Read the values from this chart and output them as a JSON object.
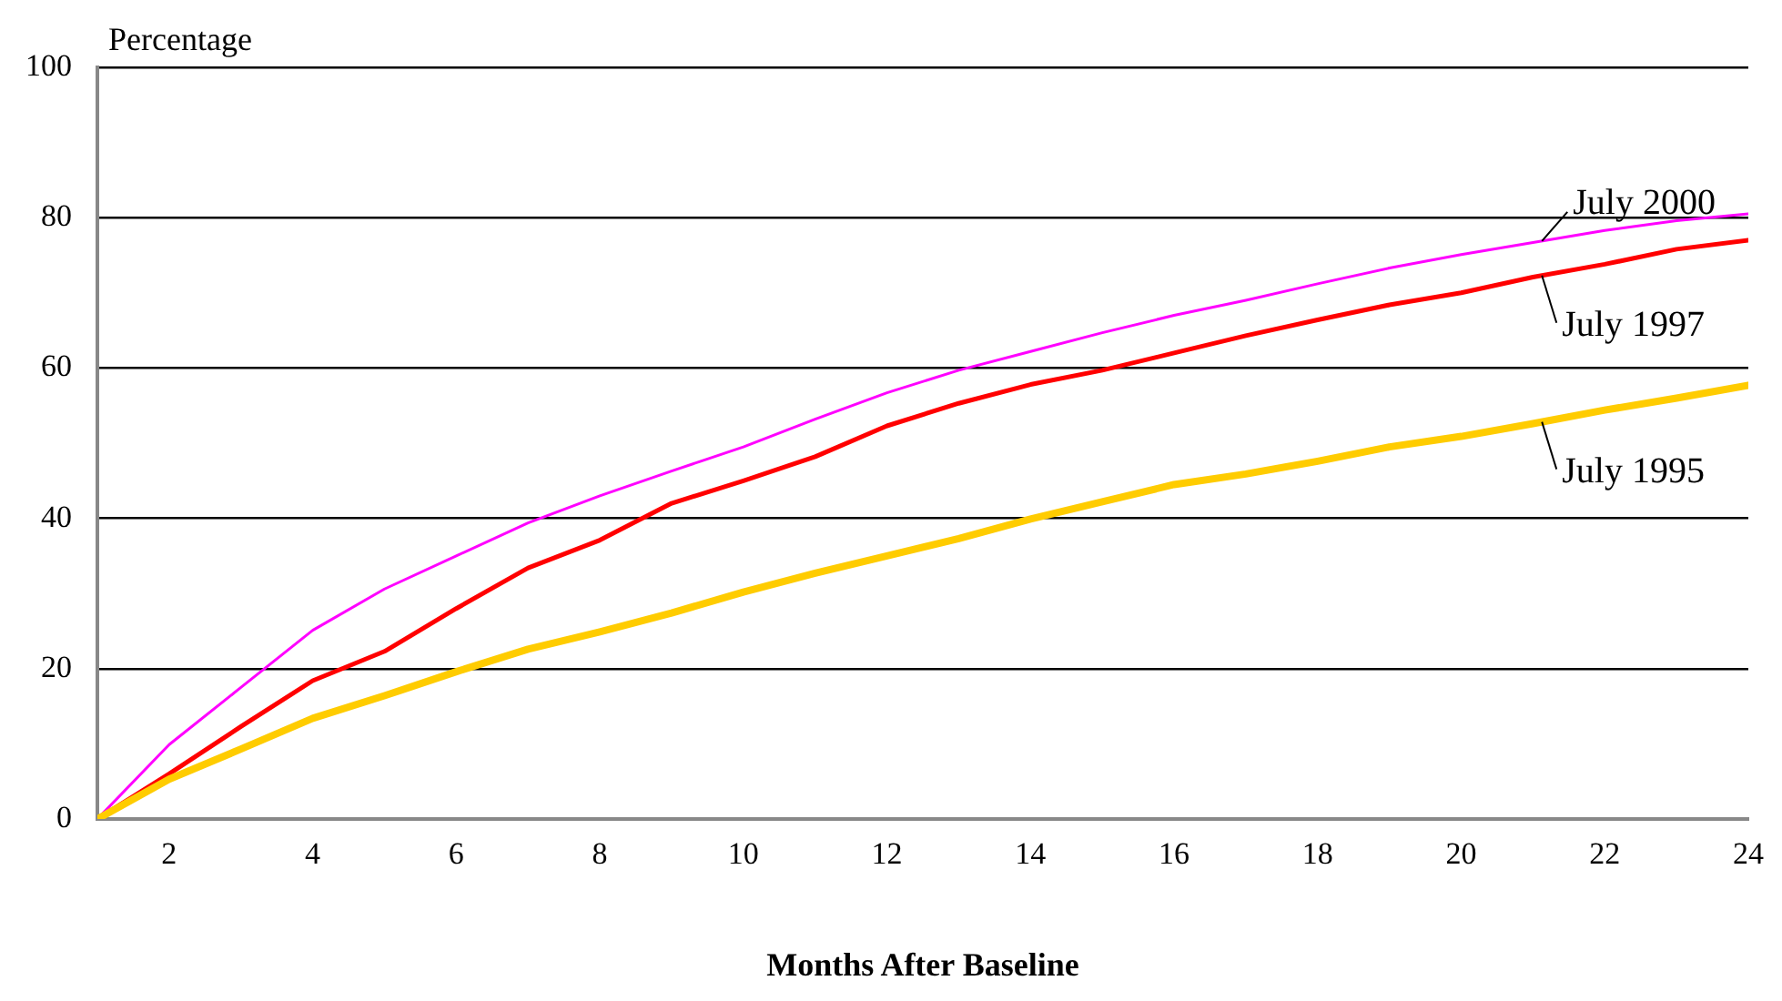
{
  "chart_data": {
    "type": "line",
    "ylabel": "Percentage",
    "xlabel": "Months After Baseline",
    "x": [
      1,
      2,
      3,
      4,
      5,
      6,
      7,
      8,
      9,
      10,
      11,
      12,
      13,
      14,
      15,
      16,
      17,
      18,
      19,
      20,
      21,
      22,
      23,
      24
    ],
    "xlim": [
      1,
      24
    ],
    "xticks": [
      2,
      4,
      6,
      8,
      10,
      12,
      14,
      16,
      18,
      20,
      22,
      24
    ],
    "ylim": [
      0,
      100
    ],
    "yticks": [
      0,
      20,
      40,
      60,
      80,
      100
    ],
    "grid": "y",
    "legend": false,
    "marker": "none",
    "line_style": "solid",
    "series": [
      {
        "name": "July 2000",
        "color": "#ff00ff",
        "values": [
          0,
          9.9,
          17.5,
          25.1,
          30.6,
          35,
          39.4,
          43,
          46.3,
          49.5,
          53.2,
          56.7,
          59.7,
          62.2,
          64.7,
          67,
          69,
          71.2,
          73.3,
          75.1,
          76.7,
          78.3,
          79.6,
          80.5
        ]
      },
      {
        "name": "July 1997",
        "color": "#ff0000",
        "values": [
          0,
          6,
          12.3,
          18.4,
          22.3,
          28,
          33.4,
          37.1,
          42,
          45,
          48.2,
          52.3,
          55.3,
          57.8,
          59.7,
          62,
          64.3,
          66.4,
          68.4,
          70,
          72.1,
          73.8,
          75.8,
          77
        ]
      },
      {
        "name": "July 1995",
        "color": "#ffcc00",
        "values": [
          0,
          5.3,
          9.3,
          13.4,
          16.4,
          19.6,
          22.6,
          24.9,
          27.4,
          30.2,
          32.7,
          35,
          37.3,
          39.9,
          42.2,
          44.5,
          45.9,
          47.6,
          49.5,
          50.9,
          52.6,
          54.4,
          56,
          57.7
        ]
      }
    ]
  }
}
